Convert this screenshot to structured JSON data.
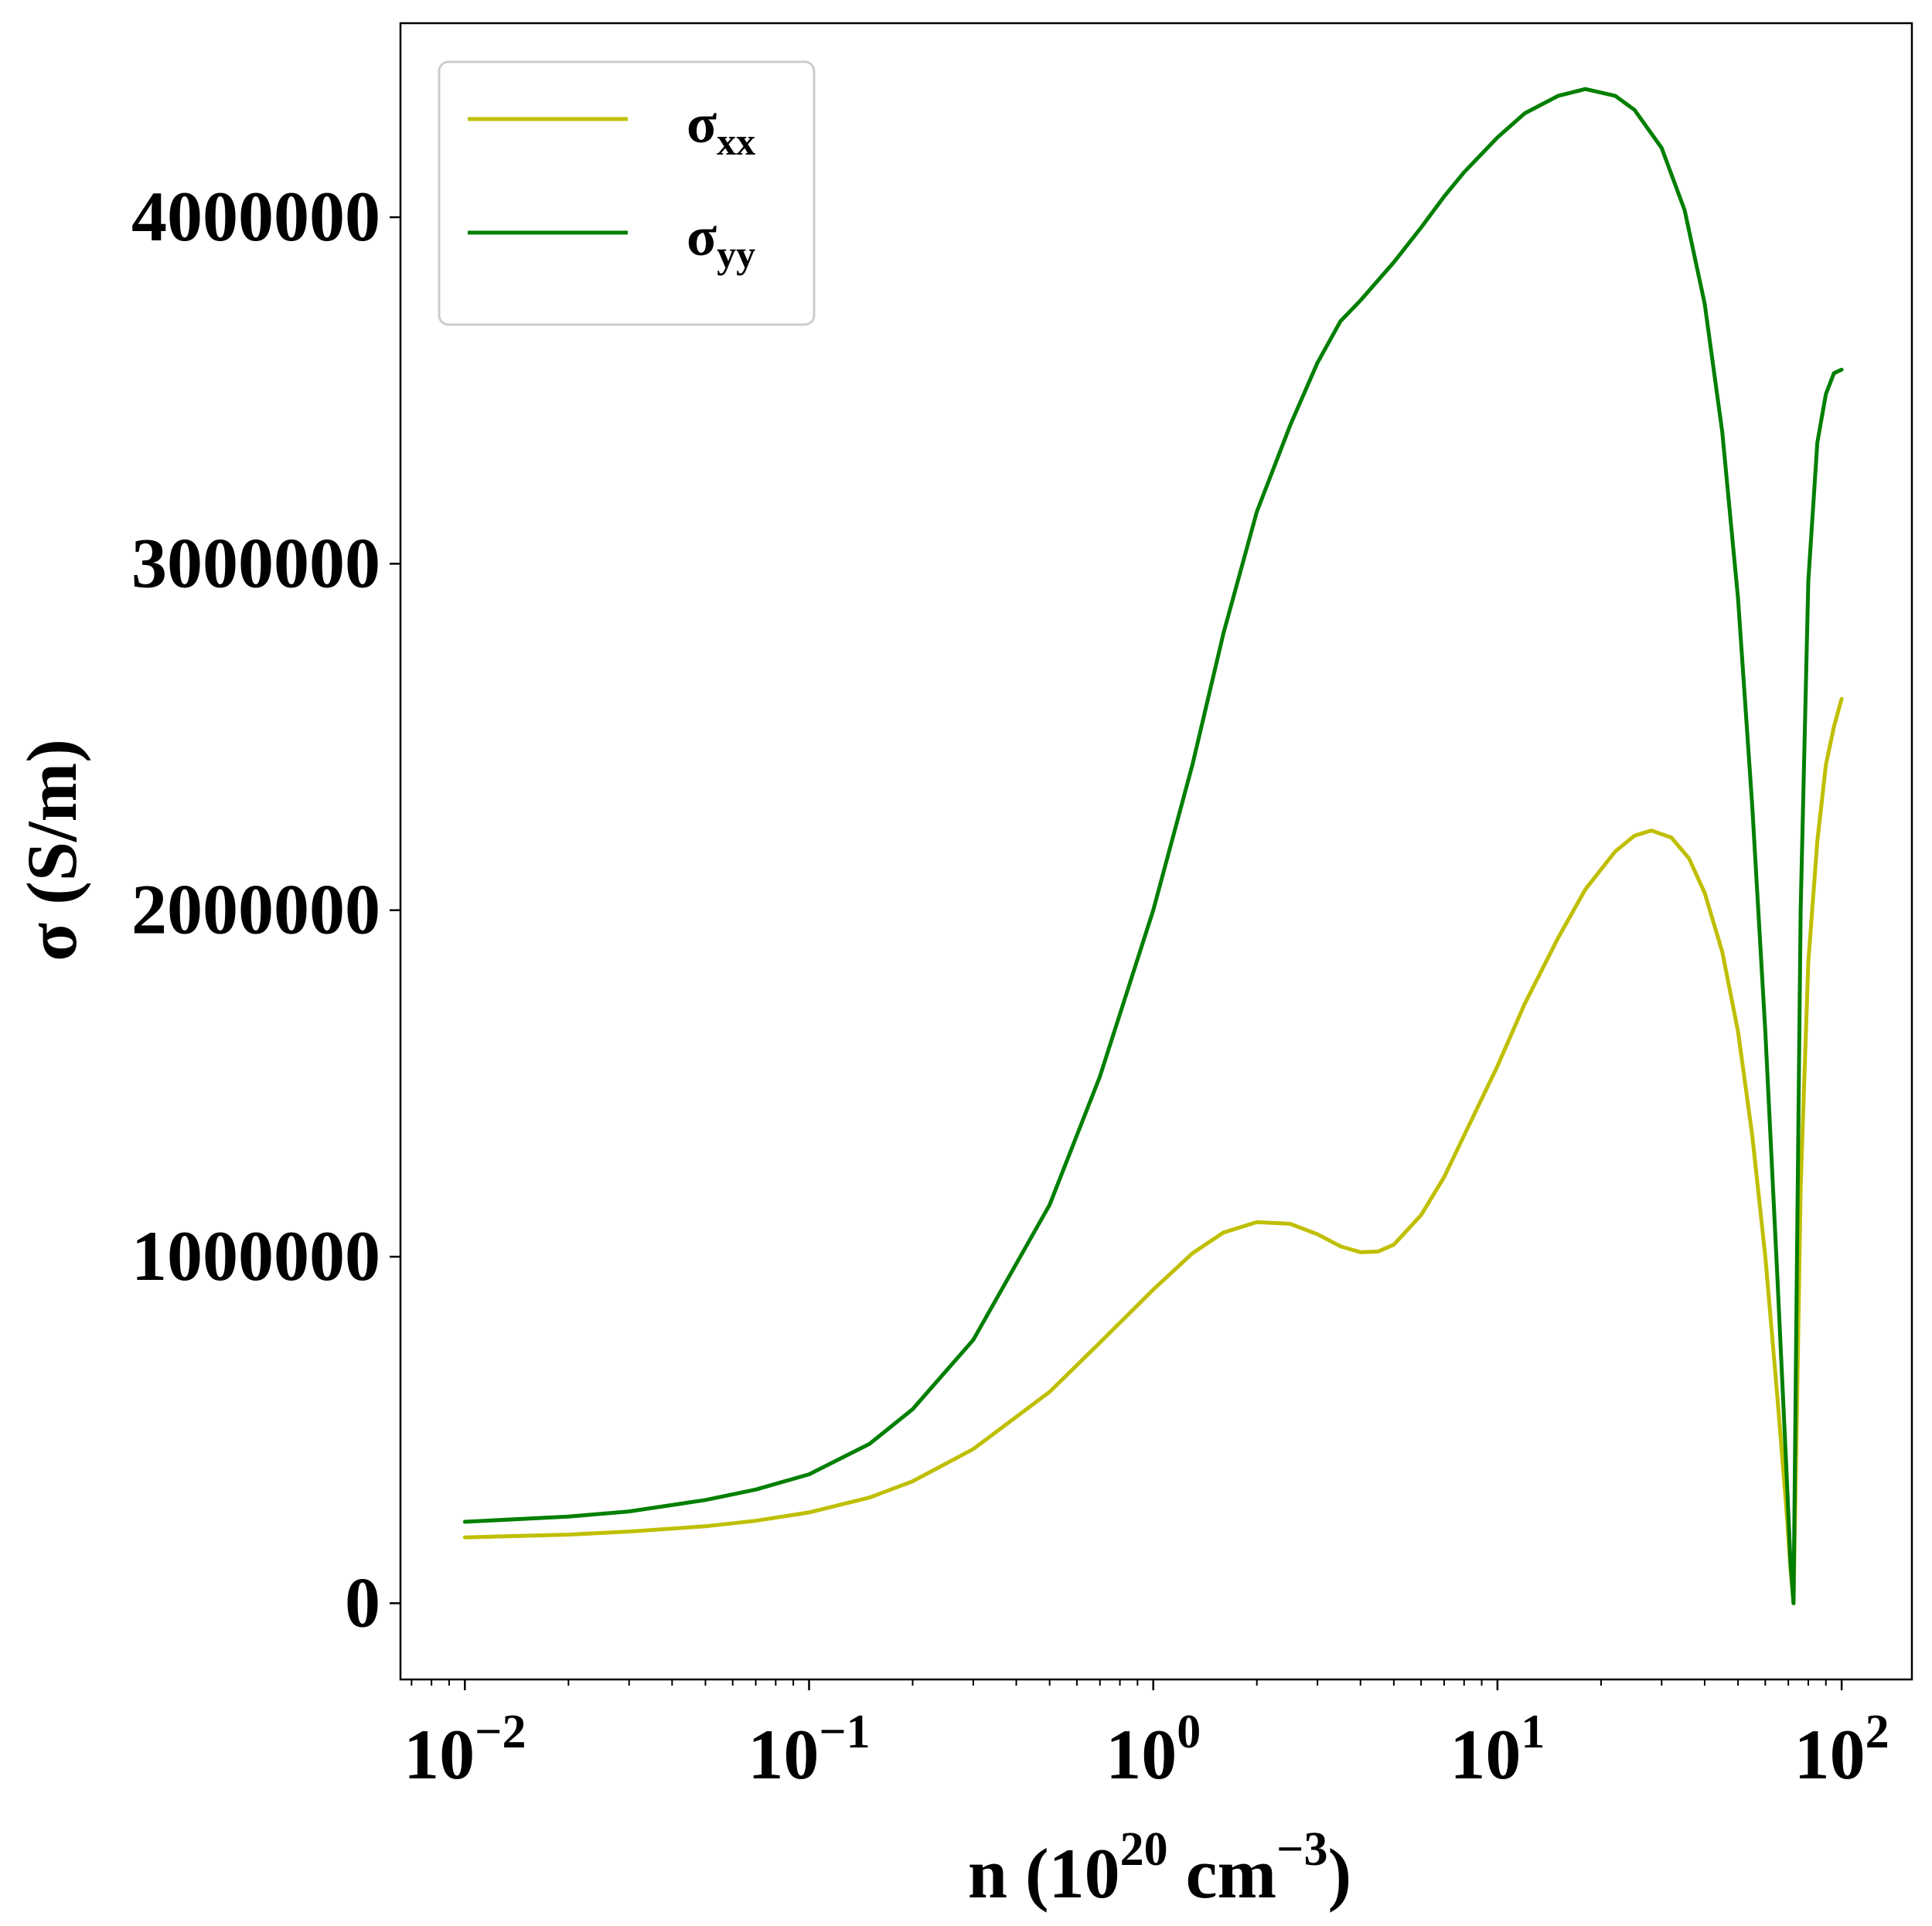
{
  "chart_data": {
    "type": "line",
    "xlabel": {
      "parts": [
        "n (10",
        "20",
        " cm",
        "−3",
        ")"
      ]
    },
    "ylabel": "σ (S/m)",
    "xscale": "log",
    "xlim": [
      0.0065,
      160
    ],
    "ylim": [
      -220000,
      4560000
    ],
    "grid": false,
    "legend_position": "top-left",
    "x_ticks": [
      {
        "value": 0.01,
        "base": "10",
        "exp": "−2"
      },
      {
        "value": 0.1,
        "base": "10",
        "exp": "−1"
      },
      {
        "value": 1,
        "base": "10",
        "exp": "0"
      },
      {
        "value": 10,
        "base": "10",
        "exp": "1"
      },
      {
        "value": 100,
        "base": "10",
        "exp": "2"
      }
    ],
    "y_ticks": [
      {
        "value": 0,
        "label": "0"
      },
      {
        "value": 1000000,
        "label": "1000000"
      },
      {
        "value": 2000000,
        "label": "2000000"
      },
      {
        "value": 3000000,
        "label": "3000000"
      },
      {
        "value": 4000000,
        "label": "4000000"
      }
    ],
    "series": [
      {
        "name": "σxx",
        "name_main": "σ",
        "name_sub": "xx",
        "color": "#bfbf00",
        "points": [
          [
            0.01,
            190000
          ],
          [
            0.02,
            198000
          ],
          [
            0.03,
            207000
          ],
          [
            0.05,
            222000
          ],
          [
            0.07,
            238000
          ],
          [
            0.1,
            262000
          ],
          [
            0.15,
            305000
          ],
          [
            0.2,
            352000
          ],
          [
            0.3,
            445000
          ],
          [
            0.5,
            610000
          ],
          [
            0.7,
            752000
          ],
          [
            1.0,
            905000
          ],
          [
            1.3,
            1010000
          ],
          [
            1.6,
            1070000
          ],
          [
            2.0,
            1100000
          ],
          [
            2.5,
            1095000
          ],
          [
            3.0,
            1065000
          ],
          [
            3.5,
            1030000
          ],
          [
            4.0,
            1013000
          ],
          [
            4.5,
            1015000
          ],
          [
            5.0,
            1035000
          ],
          [
            6.0,
            1120000
          ],
          [
            7.0,
            1230000
          ],
          [
            8.0,
            1350000
          ],
          [
            10.0,
            1550000
          ],
          [
            12.0,
            1730000
          ],
          [
            15.0,
            1920000
          ],
          [
            18.0,
            2060000
          ],
          [
            22.0,
            2170000
          ],
          [
            25.0,
            2215000
          ],
          [
            28.0,
            2230000
          ],
          [
            32.0,
            2210000
          ],
          [
            36.0,
            2150000
          ],
          [
            40.0,
            2050000
          ],
          [
            45.0,
            1880000
          ],
          [
            50.0,
            1650000
          ],
          [
            55.0,
            1350000
          ],
          [
            60.0,
            1000000
          ],
          [
            65.0,
            600000
          ],
          [
            69.0,
            280000
          ],
          [
            71.0,
            100000
          ],
          [
            72.5,
            0
          ],
          [
            74.0,
            500000
          ],
          [
            76.0,
            1200000
          ],
          [
            80.0,
            1850000
          ],
          [
            85.0,
            2200000
          ],
          [
            90.0,
            2420000
          ],
          [
            95.0,
            2530000
          ],
          [
            100.0,
            2610000
          ]
        ]
      },
      {
        "name": "σyy",
        "name_main": "σ",
        "name_sub": "yy",
        "color": "#007f00",
        "points": [
          [
            0.01,
            235000
          ],
          [
            0.02,
            250000
          ],
          [
            0.03,
            265000
          ],
          [
            0.05,
            298000
          ],
          [
            0.07,
            328000
          ],
          [
            0.1,
            372000
          ],
          [
            0.15,
            460000
          ],
          [
            0.2,
            560000
          ],
          [
            0.3,
            760000
          ],
          [
            0.5,
            1150000
          ],
          [
            0.7,
            1520000
          ],
          [
            1.0,
            2000000
          ],
          [
            1.3,
            2420000
          ],
          [
            1.6,
            2800000
          ],
          [
            2.0,
            3150000
          ],
          [
            2.5,
            3400000
          ],
          [
            3.0,
            3580000
          ],
          [
            3.5,
            3700000
          ],
          [
            4.0,
            3760000
          ],
          [
            5.0,
            3870000
          ],
          [
            6.0,
            3970000
          ],
          [
            7.0,
            4060000
          ],
          [
            8.0,
            4130000
          ],
          [
            10.0,
            4230000
          ],
          [
            12.0,
            4300000
          ],
          [
            15.0,
            4350000
          ],
          [
            18.0,
            4370000
          ],
          [
            22.0,
            4350000
          ],
          [
            25.0,
            4310000
          ],
          [
            30.0,
            4200000
          ],
          [
            35.0,
            4020000
          ],
          [
            40.0,
            3750000
          ],
          [
            45.0,
            3380000
          ],
          [
            50.0,
            2900000
          ],
          [
            55.0,
            2300000
          ],
          [
            60.0,
            1650000
          ],
          [
            65.0,
            950000
          ],
          [
            69.0,
            400000
          ],
          [
            71.0,
            120000
          ],
          [
            72.5,
            0
          ],
          [
            74.0,
            900000
          ],
          [
            76.0,
            2000000
          ],
          [
            80.0,
            2950000
          ],
          [
            85.0,
            3350000
          ],
          [
            90.0,
            3490000
          ],
          [
            95.0,
            3550000
          ],
          [
            100.0,
            3560000
          ]
        ]
      }
    ]
  }
}
